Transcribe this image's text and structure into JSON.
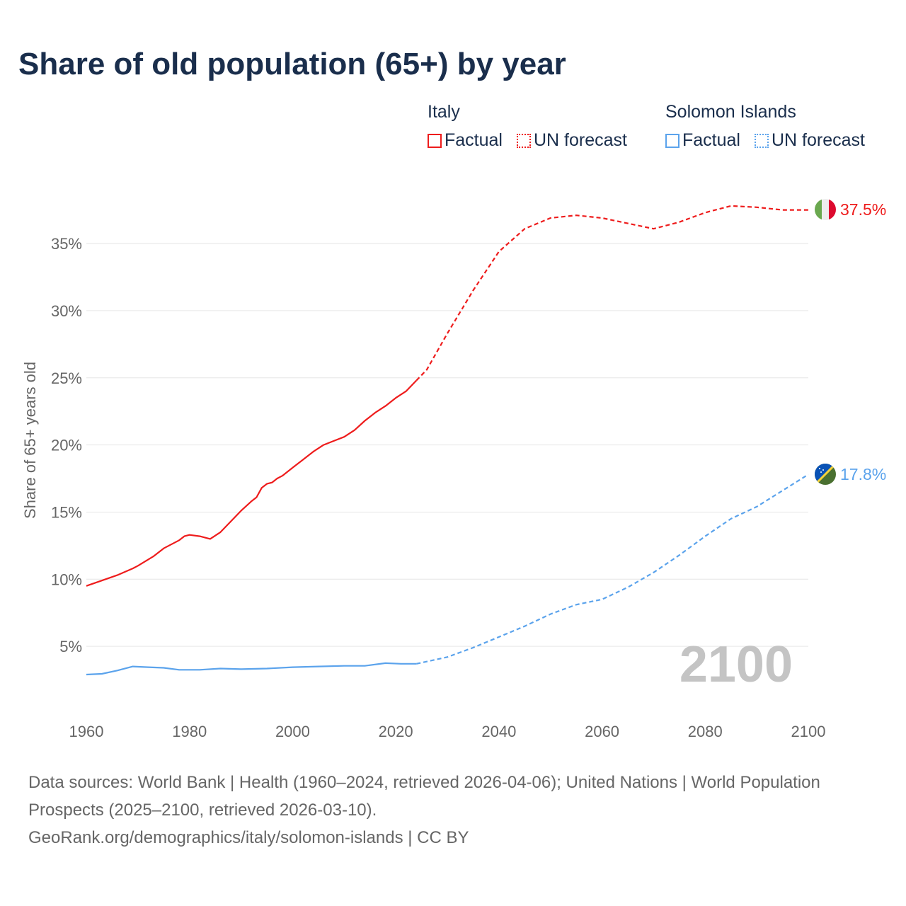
{
  "chart_data": {
    "type": "line",
    "title": "Share of old population (65+) by year",
    "ylabel": "Share of 65+ years old",
    "xlabel": "",
    "xlim": [
      1960,
      2100
    ],
    "ylim": [
      0,
      38
    ],
    "x_ticks": [
      "1960",
      "1980",
      "2000",
      "2020",
      "2040",
      "2060",
      "2080",
      "2100"
    ],
    "x_tick_values": [
      1960,
      1980,
      2000,
      2020,
      2040,
      2060,
      2080,
      2100
    ],
    "y_ticks": [
      "5%",
      "10%",
      "15%",
      "20%",
      "25%",
      "30%",
      "35%"
    ],
    "y_tick_values": [
      5,
      10,
      15,
      20,
      25,
      30,
      35
    ],
    "grid": true,
    "year_watermark": "2100",
    "legend_placement": "top-right",
    "series": [
      {
        "name": "Italy",
        "color": "#ee1c1c",
        "end_label": "37.5%",
        "flag": "italy-flag",
        "factual": {
          "x": [
            1960,
            1963,
            1966,
            1969,
            1970,
            1973,
            1975,
            1978,
            1979,
            1980,
            1982,
            1984,
            1986,
            1988,
            1990,
            1992,
            1993,
            1994,
            1995,
            1996,
            1997,
            1998,
            2000,
            2002,
            2004,
            2006,
            2008,
            2010,
            2012,
            2014,
            2016,
            2018,
            2020,
            2022,
            2024
          ],
          "y": [
            9.5,
            9.9,
            10.3,
            10.8,
            11.0,
            11.7,
            12.3,
            12.9,
            13.2,
            13.3,
            13.2,
            13.0,
            13.5,
            14.3,
            15.1,
            15.8,
            16.1,
            16.8,
            17.1,
            17.2,
            17.5,
            17.7,
            18.3,
            18.9,
            19.5,
            20.0,
            20.3,
            20.6,
            21.1,
            21.8,
            22.4,
            22.9,
            23.5,
            24.0,
            24.8
          ]
        },
        "forecast": {
          "x": [
            2024,
            2026,
            2030,
            2035,
            2040,
            2045,
            2050,
            2055,
            2060,
            2065,
            2070,
            2075,
            2080,
            2085,
            2090,
            2095,
            2100
          ],
          "y": [
            24.8,
            25.6,
            28.3,
            31.5,
            34.4,
            36.1,
            36.9,
            37.1,
            36.9,
            36.5,
            36.1,
            36.6,
            37.3,
            37.8,
            37.7,
            37.5,
            37.5
          ]
        }
      },
      {
        "name": "Solomon Islands",
        "color": "#5ba3ec",
        "end_label": "17.8%",
        "flag": "solomon-islands-flag",
        "factual": {
          "x": [
            1960,
            1963,
            1966,
            1969,
            1972,
            1975,
            1978,
            1982,
            1986,
            1990,
            1995,
            2000,
            2005,
            2010,
            2014,
            2018,
            2021,
            2024
          ],
          "y": [
            2.9,
            2.95,
            3.2,
            3.5,
            3.45,
            3.4,
            3.25,
            3.25,
            3.35,
            3.3,
            3.35,
            3.45,
            3.5,
            3.55,
            3.55,
            3.75,
            3.7,
            3.7
          ]
        },
        "forecast": {
          "x": [
            2024,
            2030,
            2035,
            2040,
            2045,
            2050,
            2055,
            2060,
            2065,
            2070,
            2075,
            2080,
            2085,
            2090,
            2095,
            2100
          ],
          "y": [
            3.7,
            4.2,
            4.9,
            5.7,
            6.5,
            7.4,
            8.1,
            8.5,
            9.4,
            10.5,
            11.8,
            13.2,
            14.5,
            15.4,
            16.6,
            17.8
          ]
        }
      }
    ]
  },
  "legend": {
    "groups": [
      {
        "name": "Italy",
        "factual": "Factual",
        "forecast": "UN forecast"
      },
      {
        "name": "Solomon Islands",
        "factual": "Factual",
        "forecast": "UN forecast"
      }
    ]
  },
  "footer": {
    "sources": "Data sources: World Bank | Health (1960–2024, retrieved 2026-04-06); United Nations | World Population Prospects (2025–2100, retrieved 2026-03-10).",
    "link": "GeoRank.org/demographics/italy/solomon-islands | CC BY"
  }
}
